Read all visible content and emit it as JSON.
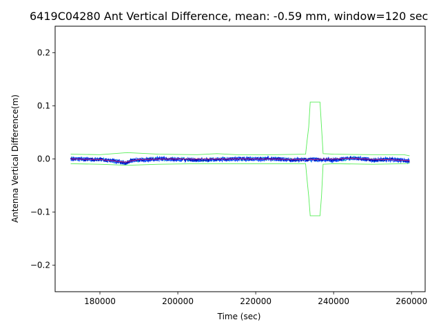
{
  "chart_data": {
    "type": "line",
    "title": "6419C04280 Ant Vertical Difference, mean: -0.59 mm, window=120 sec",
    "xlabel": "Time (sec)",
    "ylabel": "Antenna Vertical Difference(m)",
    "xlim": [
      168500,
      263500
    ],
    "ylim": [
      -0.25,
      0.25
    ],
    "xticks": [
      180000,
      200000,
      220000,
      240000,
      260000
    ],
    "xtick_labels": [
      "180000",
      "200000",
      "220000",
      "240000",
      "260000"
    ],
    "yticks": [
      -0.2,
      -0.1,
      0.0,
      0.1,
      0.2
    ],
    "ytick_labels": [
      "−0.2",
      "−0.1",
      "0.0",
      "0.1",
      "0.2"
    ],
    "grid": false,
    "colors": {
      "raw_difference": "#1f4fff",
      "raw_difference_dark": "#0000aa",
      "raw_difference_cyan": "#00a5c8",
      "window_mean": "#c83278",
      "std_band": "#55ee55"
    },
    "series": [
      {
        "role": "raw_difference",
        "x_range": [
          172500,
          259500
        ],
        "mean": -0.00059,
        "noise_amplitude": 0.004,
        "notes_points": [
          [
            172500,
            0.0
          ],
          [
            180000,
            -0.001
          ],
          [
            185000,
            -0.005
          ],
          [
            186500,
            -0.008
          ],
          [
            188000,
            -0.003
          ],
          [
            195000,
            0.0
          ],
          [
            205000,
            -0.002
          ],
          [
            215000,
            0.0
          ],
          [
            225000,
            0.0
          ],
          [
            230000,
            -0.002
          ],
          [
            235000,
            -0.001
          ],
          [
            240000,
            -0.002
          ],
          [
            245000,
            0.002
          ],
          [
            250000,
            -0.002
          ],
          [
            255000,
            -0.001
          ],
          [
            259500,
            -0.004
          ]
        ]
      },
      {
        "role": "window_mean",
        "points": [
          [
            172500,
            0.0
          ],
          [
            180000,
            -0.001
          ],
          [
            186500,
            -0.006
          ],
          [
            190000,
            -0.001
          ],
          [
            200000,
            0.0
          ],
          [
            220000,
            0.0
          ],
          [
            235000,
            -0.001
          ],
          [
            245000,
            0.001
          ],
          [
            259500,
            -0.003
          ]
        ]
      },
      {
        "role": "std_band_upper",
        "points": [
          [
            172500,
            0.009
          ],
          [
            180000,
            0.008
          ],
          [
            187000,
            0.012
          ],
          [
            195000,
            0.009
          ],
          [
            205000,
            0.008
          ],
          [
            210000,
            0.01
          ],
          [
            215000,
            0.008
          ],
          [
            225000,
            0.008
          ],
          [
            232800,
            0.009
          ],
          [
            233200,
            0.035
          ],
          [
            233600,
            0.06
          ],
          [
            234000,
            0.107
          ],
          [
            236500,
            0.107
          ],
          [
            236900,
            0.06
          ],
          [
            237300,
            0.01
          ],
          [
            240000,
            0.009
          ],
          [
            250000,
            0.008
          ],
          [
            258000,
            0.008
          ],
          [
            259500,
            0.006
          ]
        ]
      },
      {
        "role": "std_band_lower",
        "points": [
          [
            172500,
            -0.009
          ],
          [
            180000,
            -0.01
          ],
          [
            187000,
            -0.012
          ],
          [
            195000,
            -0.01
          ],
          [
            205000,
            -0.009
          ],
          [
            215000,
            -0.009
          ],
          [
            225000,
            -0.009
          ],
          [
            232800,
            -0.009
          ],
          [
            233200,
            -0.04
          ],
          [
            233600,
            -0.07
          ],
          [
            234000,
            -0.107
          ],
          [
            236500,
            -0.107
          ],
          [
            236900,
            -0.07
          ],
          [
            237300,
            -0.01
          ],
          [
            240000,
            -0.009
          ],
          [
            250000,
            -0.01
          ],
          [
            258000,
            -0.009
          ],
          [
            259500,
            -0.008
          ]
        ]
      }
    ]
  }
}
